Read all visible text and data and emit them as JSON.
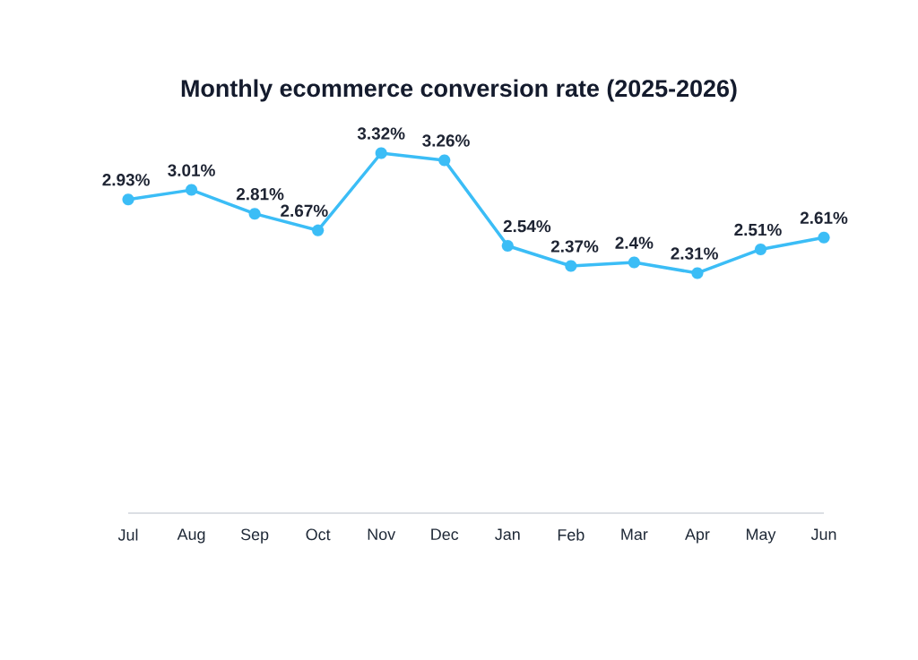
{
  "chart_data": {
    "type": "line",
    "title": "Monthly ecommerce conversion rate (2025-2026)",
    "categories": [
      "Jul",
      "Aug",
      "Sep",
      "Oct",
      "Nov",
      "Dec",
      "Jan",
      "Feb",
      "Mar",
      "Apr",
      "May",
      "Jun"
    ],
    "values": [
      2.93,
      3.01,
      2.81,
      2.67,
      3.32,
      3.26,
      2.54,
      2.37,
      2.4,
      2.31,
      2.51,
      2.61
    ],
    "value_labels": [
      "2.93%",
      "3.01%",
      "2.81%",
      "2.67%",
      "3.32%",
      "3.26%",
      "2.54%",
      "2.37%",
      "2.4%",
      "2.31%",
      "2.51%",
      "2.61%"
    ],
    "color": "#3bbdf6",
    "marker": "circle",
    "line_style": "solid",
    "tick_labels": "x"
  }
}
